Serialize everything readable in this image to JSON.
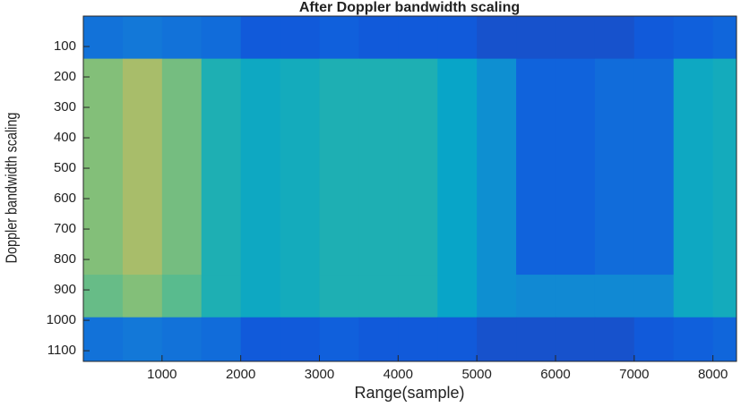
{
  "chart_data": {
    "type": "heatmap",
    "title": "After Doppler bandwidth scaling",
    "xlabel": "Range(sample)",
    "ylabel": "Doppler bandwidth scaling",
    "x_edges": [
      0,
      500,
      1000,
      1500,
      2000,
      2500,
      3000,
      3500,
      4000,
      4500,
      5000,
      5500,
      6000,
      6500,
      7000,
      7500,
      8000,
      8300
    ],
    "y_edges": [
      0,
      140,
      850,
      990,
      1135
    ],
    "z": [
      [
        0.2,
        0.22,
        0.2,
        0.18,
        0.12,
        0.12,
        0.14,
        0.12,
        0.12,
        0.12,
        0.1,
        0.1,
        0.1,
        0.1,
        0.12,
        0.14,
        0.16
      ],
      [
        0.62,
        0.68,
        0.6,
        0.45,
        0.4,
        0.42,
        0.45,
        0.45,
        0.45,
        0.38,
        0.3,
        0.15,
        0.15,
        0.18,
        0.18,
        0.4,
        0.42
      ],
      [
        0.58,
        0.62,
        0.56,
        0.45,
        0.4,
        0.42,
        0.45,
        0.45,
        0.45,
        0.38,
        0.3,
        0.28,
        0.28,
        0.28,
        0.28,
        0.4,
        0.42
      ],
      [
        0.2,
        0.22,
        0.2,
        0.18,
        0.12,
        0.12,
        0.14,
        0.12,
        0.12,
        0.12,
        0.1,
        0.1,
        0.1,
        0.1,
        0.12,
        0.14,
        0.16
      ]
    ],
    "colormap": [
      "#352a87",
      "#0f5cdd",
      "#1481d6",
      "#06a4ca",
      "#2eb7a4",
      "#87bf77",
      "#d1bb59",
      "#fec832",
      "#f9fb0e"
    ],
    "xlim": [
      0,
      8300
    ],
    "ylim": [
      0,
      1135
    ],
    "y_reversed": true,
    "xticks": [
      1000,
      2000,
      3000,
      4000,
      5000,
      6000,
      7000,
      8000
    ],
    "yticks": [
      100,
      200,
      300,
      400,
      500,
      600,
      700,
      800,
      900,
      1000,
      1100
    ]
  }
}
